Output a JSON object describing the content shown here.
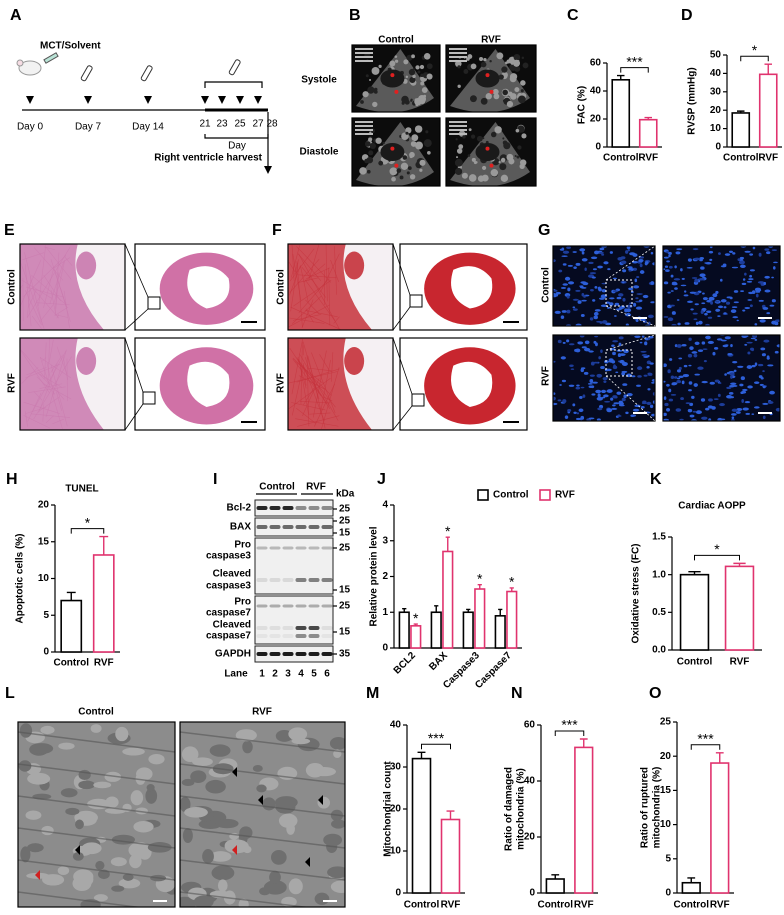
{
  "panels": {
    "A": {
      "letter": "A",
      "treatment": "MCT/Solvent",
      "days": [
        "Day 0",
        "Day 7",
        "Day 14"
      ],
      "late_days": [
        "21",
        "23",
        "25",
        "27",
        "28"
      ],
      "day_axis": "Day",
      "endpoint": "Right ventricle harvest"
    },
    "B": {
      "letter": "B",
      "columns": [
        "Control",
        "RVF"
      ],
      "rows": [
        "Systole",
        "Diastole"
      ]
    },
    "E": {
      "letter": "E",
      "rows": [
        "Control",
        "RVF"
      ]
    },
    "F": {
      "letter": "F",
      "rows": [
        "Control",
        "RVF"
      ]
    },
    "G": {
      "letter": "G",
      "rows": [
        "Control",
        "RVF"
      ]
    },
    "I": {
      "letter": "I",
      "groups": [
        "Control",
        "RVF"
      ],
      "unit": "kDa",
      "proteins": [
        [
          "Bcl-2"
        ],
        [
          "BAX"
        ],
        [
          "Pro",
          "caspase3"
        ],
        [
          "Cleaved",
          "caspase3"
        ],
        [
          "Pro",
          "caspase7"
        ],
        [
          "Cleaved",
          "caspase7"
        ],
        [
          "GAPDH"
        ]
      ],
      "markers": [
        25,
        25,
        15,
        25,
        15,
        25,
        15,
        35
      ],
      "lane_label": "Lane",
      "lanes": [
        1,
        2,
        3,
        4,
        5,
        6
      ]
    },
    "L": {
      "letter": "L",
      "columns": [
        "Control",
        "RVF"
      ]
    }
  },
  "chart_data": [
    {
      "type": "bar",
      "panel": "C",
      "ylabel": "FAC (%)",
      "categories": [
        "Control",
        "RVF"
      ],
      "values": [
        48,
        19.5
      ],
      "errors": [
        3,
        1.5
      ],
      "colors": [
        "#000000",
        "#e0336e"
      ],
      "ylim": [
        0,
        60
      ],
      "yticks": [
        0,
        20,
        40,
        60
      ],
      "significance": "***"
    },
    {
      "type": "bar",
      "panel": "D",
      "ylabel": "RVSP (mmHg)",
      "categories": [
        "Control",
        "RVF"
      ],
      "values": [
        18.5,
        39.5
      ],
      "errors": [
        1,
        5.5
      ],
      "colors": [
        "#000000",
        "#e0336e"
      ],
      "ylim": [
        0,
        50
      ],
      "yticks": [
        0,
        10,
        20,
        30,
        40,
        50
      ],
      "significance": "*"
    },
    {
      "type": "bar",
      "panel": "H",
      "title": "TUNEL",
      "ylabel": "Apoptotic cells (%)",
      "categories": [
        "Control",
        "RVF"
      ],
      "values": [
        7,
        13.2
      ],
      "errors": [
        1.1,
        2.5
      ],
      "colors": [
        "#000000",
        "#e0336e"
      ],
      "ylim": [
        0,
        20
      ],
      "yticks": [
        0,
        5,
        10,
        15,
        20
      ],
      "significance": "*"
    },
    {
      "type": "bar",
      "panel": "J",
      "ylabel": "Relative protein level",
      "categories": [
        "BCL2",
        "BAX",
        "Caspase3",
        "Caspase7"
      ],
      "series": [
        {
          "name": "Control",
          "color": "#000000",
          "values": [
            1.0,
            1.0,
            1.0,
            0.9
          ],
          "errors": [
            0.1,
            0.18,
            0.08,
            0.18
          ]
        },
        {
          "name": "RVF",
          "color": "#e0336e",
          "values": [
            0.62,
            2.7,
            1.65,
            1.58
          ],
          "errors": [
            0.05,
            0.4,
            0.12,
            0.1
          ],
          "annotations": [
            "*",
            "*",
            "*",
            "*"
          ]
        }
      ],
      "ylim": [
        0,
        4
      ],
      "yticks": [
        0,
        1,
        2,
        3,
        4
      ],
      "legend": "top"
    },
    {
      "type": "bar",
      "panel": "K",
      "title": "Cardiac AOPP",
      "ylabel": "Oxidative stress (FC)",
      "categories": [
        "Control",
        "RVF"
      ],
      "values": [
        1.0,
        1.11
      ],
      "errors": [
        0.04,
        0.04
      ],
      "colors": [
        "#000000",
        "#e0336e"
      ],
      "ylim": [
        0,
        1.5
      ],
      "yticks": [
        {
          "value": 0,
          "label": "0.0"
        },
        0.5,
        {
          "value": 1,
          "label": "1.0"
        },
        1.5
      ],
      "significance": "*"
    },
    {
      "type": "bar",
      "panel": "M",
      "ylabel": "Mitochondrial count",
      "categories": [
        "Control",
        "RVF"
      ],
      "values": [
        32,
        17.5
      ],
      "errors": [
        1.5,
        2
      ],
      "colors": [
        "#000000",
        "#e0336e"
      ],
      "ylim": [
        0,
        40
      ],
      "yticks": [
        0,
        10,
        20,
        30,
        40
      ],
      "significance": "***"
    },
    {
      "type": "bar",
      "panel": "N",
      "ylabel": [
        "Ratio of damaged",
        "mitochondria (%)"
      ],
      "categories": [
        "Control",
        "RVF"
      ],
      "values": [
        5,
        52
      ],
      "errors": [
        1.5,
        3
      ],
      "colors": [
        "#000000",
        "#e0336e"
      ],
      "ylim": [
        0,
        60
      ],
      "yticks": [
        0,
        20,
        40,
        60
      ],
      "significance": "***"
    },
    {
      "type": "bar",
      "panel": "O",
      "ylabel": [
        "Ratio of ruptured",
        "mitochondria (%)"
      ],
      "categories": [
        "Control",
        "RVF"
      ],
      "values": [
        1.5,
        19
      ],
      "errors": [
        0.7,
        1.5
      ],
      "colors": [
        "#000000",
        "#e0336e"
      ],
      "ylim": [
        0,
        25
      ],
      "yticks": [
        0,
        5,
        10,
        15,
        20,
        25
      ],
      "significance": "***"
    }
  ]
}
